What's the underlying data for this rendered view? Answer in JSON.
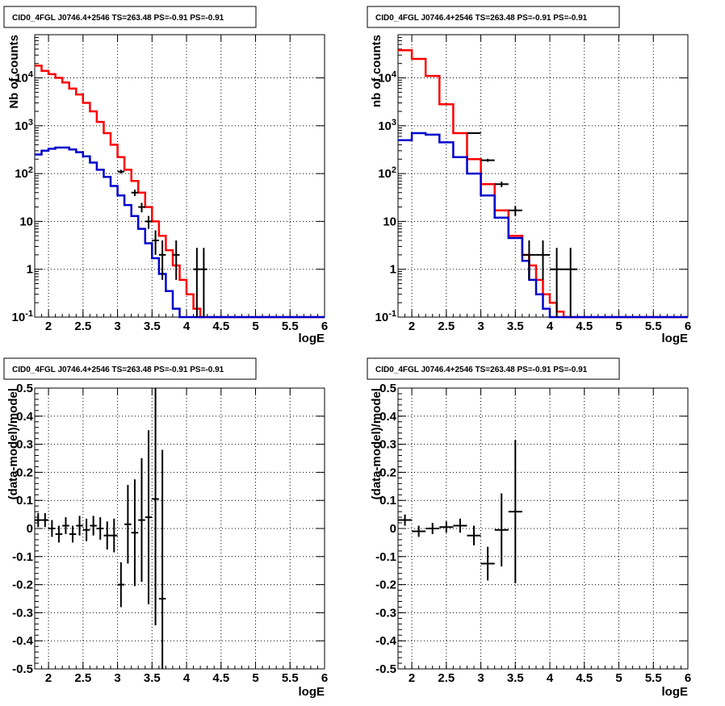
{
  "chart_data": [
    {
      "type": "line",
      "title": "CID0_4FGL J0746.4+2546 TS=263.48 PS=-0.91 PS=-0.91",
      "xlabel": "logE",
      "ylabel": "Nb of counts",
      "xlim": [
        1.8,
        6.0
      ],
      "ylim": [
        0.1,
        80000
      ],
      "yscale": "log",
      "grid": true,
      "xticks": [
        "2",
        "2.5",
        "3",
        "3.5",
        "4",
        "4.5",
        "5",
        "5.5",
        "6"
      ],
      "yticks": [
        "10^-1",
        "1",
        "10",
        "10^2",
        "10^3",
        "10^4"
      ],
      "colors": {
        "total_model": "#ff0000",
        "source_model": "#0000cc",
        "data": "#000000"
      },
      "series": [
        {
          "edges": [
            1.8,
            1.9,
            2.0,
            2.1,
            2.2,
            2.3,
            2.4,
            2.5,
            2.6,
            2.7,
            2.8,
            2.9,
            3.0,
            3.1,
            3.2,
            3.3,
            3.4,
            3.5,
            3.6,
            3.7,
            3.8,
            3.9,
            4.0,
            4.1,
            4.2,
            4.3,
            4.4,
            6.0
          ],
          "values": [
            18000,
            14000,
            12000,
            10000,
            8000,
            6000,
            4500,
            3000,
            2000,
            1200,
            700,
            400,
            220,
            120,
            70,
            40,
            20,
            10,
            5,
            2.5,
            1.2,
            0.6,
            0.3,
            0.15,
            0.1,
            0.1,
            0.1
          ],
          "color": "#ff0000"
        },
        {
          "edges": [
            1.8,
            1.9,
            2.0,
            2.1,
            2.2,
            2.3,
            2.4,
            2.5,
            2.6,
            2.7,
            2.8,
            2.9,
            3.0,
            3.1,
            3.2,
            3.3,
            3.4,
            3.5,
            3.6,
            3.7,
            3.8,
            3.9,
            4.0,
            6.0
          ],
          "values": [
            250,
            300,
            330,
            350,
            350,
            320,
            280,
            230,
            170,
            120,
            85,
            55,
            35,
            22,
            13,
            7,
            3.5,
            1.7,
            0.8,
            0.35,
            0.15,
            0.08,
            0.08
          ],
          "color": "#0000cc"
        },
        {
          "x": [
            3.05,
            3.25,
            3.35,
            3.45,
            3.55,
            3.65,
            3.85,
            4.15,
            4.25
          ],
          "y": [
            110,
            40,
            20,
            10,
            4,
            2,
            2,
            1,
            1
          ],
          "xerr": 0.05,
          "yerr_lo": [
            10,
            6,
            4.5,
            3,
            2,
            1.4,
            1.4,
            0.95,
            0.95
          ],
          "yerr_hi": [
            10,
            6,
            4.5,
            3,
            2.5,
            2,
            2,
            1.8,
            1.8
          ]
        }
      ]
    },
    {
      "type": "line",
      "title": "CID0_4FGL J0746.4+2546 TS=263.48 PS=-0.91 PS=-0.91",
      "xlabel": "logE",
      "ylabel": "nb of counts",
      "xlim": [
        1.8,
        6.0
      ],
      "ylim": [
        0.1,
        80000
      ],
      "yscale": "log",
      "grid": true,
      "xticks": [
        "2",
        "2.5",
        "3",
        "3.5",
        "4",
        "4.5",
        "5",
        "5.5",
        "6"
      ],
      "yticks": [
        "10^-1",
        "1",
        "10",
        "10^2",
        "10^3",
        "10^4"
      ],
      "colors": {
        "total_model": "#ff0000",
        "source_model": "#0000cc",
        "data": "#000000"
      },
      "series": [
        {
          "edges": [
            1.8,
            2.0,
            2.2,
            2.4,
            2.6,
            2.8,
            3.0,
            3.2,
            3.4,
            3.6,
            3.7,
            3.8,
            3.9,
            4.0,
            4.1,
            4.2,
            4.4,
            6.0
          ],
          "values": [
            38000,
            25000,
            11000,
            2800,
            700,
            200,
            60,
            17,
            5,
            2,
            1.2,
            0.6,
            0.3,
            0.2,
            0.13,
            0.1,
            0.1
          ],
          "color": "#ff0000"
        },
        {
          "edges": [
            1.8,
            2.0,
            2.2,
            2.4,
            2.6,
            2.8,
            3.0,
            3.2,
            3.4,
            3.6,
            3.7,
            3.8,
            3.9,
            4.0,
            6.0
          ],
          "values": [
            500,
            700,
            650,
            450,
            220,
            100,
            35,
            12,
            4.5,
            1.5,
            0.6,
            0.3,
            0.15,
            0.08
          ],
          "color": "#0000cc"
        },
        {
          "x": [
            2.9,
            3.1,
            3.3,
            3.5,
            3.7,
            3.9,
            4.1,
            4.3
          ],
          "y": [
            700,
            190,
            60,
            17,
            2,
            2,
            1,
            1
          ],
          "xerr": 0.1,
          "yerr_lo": [
            25,
            14,
            8,
            4,
            1.4,
            1.4,
            0.95,
            0.95
          ],
          "yerr_hi": [
            25,
            14,
            8,
            4,
            2,
            2,
            1.8,
            1.8
          ]
        }
      ]
    },
    {
      "type": "scatter",
      "title": "CID0_4FGL J0746.4+2546 TS=263.48 PS=-0.91 PS=-0.91",
      "xlabel": "logE",
      "ylabel": "(data-model)/model",
      "xlim": [
        1.8,
        6.0
      ],
      "ylim": [
        -0.5,
        0.5
      ],
      "grid": true,
      "xticks": [
        "2",
        "2.5",
        "3",
        "3.5",
        "4",
        "4.5",
        "5",
        "5.5",
        "6"
      ],
      "yticks": [
        "-0.5",
        "-0.4",
        "-0.3",
        "-0.2",
        "-0.1",
        "0",
        "0.1",
        "0.2",
        "0.3",
        "0.4",
        "0.5"
      ],
      "series": [
        {
          "x": [
            1.85,
            1.95,
            2.05,
            2.15,
            2.25,
            2.35,
            2.45,
            2.55,
            2.65,
            2.75,
            2.85,
            2.95,
            3.05,
            3.15,
            3.25,
            3.35,
            3.45,
            3.55,
            3.65
          ],
          "y": [
            0.03,
            0.03,
            0.0,
            -0.02,
            0.01,
            -0.02,
            0.01,
            -0.005,
            0.01,
            0.0,
            -0.025,
            -0.025,
            -0.2,
            0.015,
            -0.015,
            0.03,
            0.04,
            0.105,
            -0.25
          ],
          "xerr": 0.05,
          "yerr": [
            0.025,
            0.025,
            0.03,
            0.03,
            0.03,
            0.03,
            0.035,
            0.04,
            0.035,
            0.04,
            0.05,
            0.06,
            0.08,
            0.14,
            0.19,
            0.22,
            0.31,
            0.45,
            0.53
          ]
        }
      ]
    },
    {
      "type": "scatter",
      "title": "CID0_4FGL J0746.4+2546 TS=263.48 PS=-0.91 PS=-0.91",
      "xlabel": "logE",
      "ylabel": "(data-model)/model",
      "xlim": [
        1.8,
        6.0
      ],
      "ylim": [
        -0.5,
        0.5
      ],
      "grid": true,
      "xticks": [
        "2",
        "2.5",
        "3",
        "3.5",
        "4",
        "4.5",
        "5",
        "5.5",
        "6"
      ],
      "yticks": [
        "-0.5",
        "-0.4",
        "-0.3",
        "-0.2",
        "-0.1",
        "0",
        "0.1",
        "0.2",
        "0.3",
        "0.4",
        "0.5"
      ],
      "series": [
        {
          "x": [
            1.9,
            2.1,
            2.3,
            2.5,
            2.7,
            2.9,
            3.1,
            3.3,
            3.5
          ],
          "y": [
            0.03,
            -0.01,
            0.0,
            0.005,
            0.01,
            -0.025,
            -0.125,
            -0.005,
            0.06
          ],
          "xerr": 0.1,
          "yerr": [
            0.02,
            0.02,
            0.02,
            0.02,
            0.025,
            0.035,
            0.06,
            0.13,
            0.255
          ]
        }
      ]
    }
  ]
}
